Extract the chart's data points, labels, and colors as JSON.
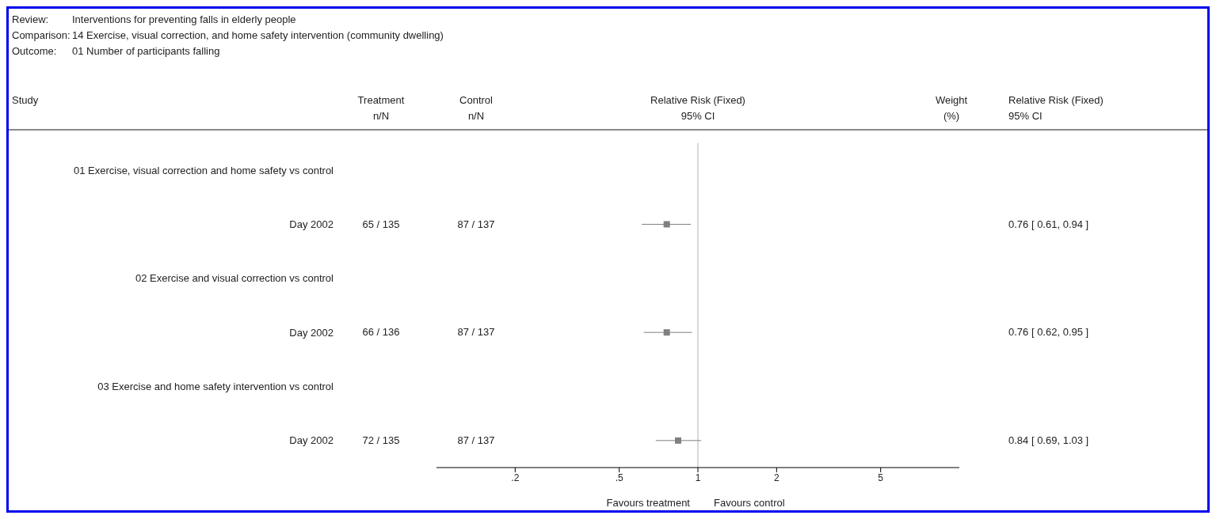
{
  "chart_data": {
    "type": "scatter",
    "orientation": "horizontal",
    "log": "x",
    "marker": "square",
    "grid": false,
    "legend": false,
    "color": "#808080",
    "categories": [
      "01 Exercise, visual correction and home safety vs control",
      "Day 2002",
      "02 Exercise and visual correction vs control",
      "Day 2002",
      "03 Exercise and home safety intervention vs control",
      "Day 2002"
    ],
    "values": [
      null,
      0.76,
      null,
      0.76,
      null,
      0.84
    ],
    "errors": [
      null,
      [
        0.61,
        0.94
      ],
      null,
      [
        0.62,
        0.95
      ],
      null,
      [
        0.69,
        1.03
      ]
    ],
    "value_labels": [
      null,
      "0.76 [ 0.61, 0.94 ]",
      null,
      "0.76 [ 0.62, 0.95 ]",
      null,
      "0.84 [ 0.69, 1.03 ]"
    ],
    "xlim": [
      0.1,
      10
    ],
    "xticks": [
      {
        "value": 0.2,
        "label": ".2"
      },
      {
        "value": 0.5,
        "label": ".5"
      },
      1,
      2,
      5
    ],
    "ref_lines": [
      {
        "axis": "x",
        "value": 1,
        "color": "#b0b0b0"
      }
    ],
    "annotations": [
      "Review:",
      "Interventions for preventing falls in elderly people",
      "Comparison:",
      "14 Exercise, visual correction, and home safety intervention (community dwelling)",
      "Outcome:",
      "01 Number of participants falling",
      "Study",
      "Treatment",
      "n/N",
      "Control",
      "n/N",
      "Relative Risk (Fixed)",
      "95% CI",
      "Weight",
      "(%)",
      "Relative Risk (Fixed)",
      "95% CI",
      "Favours treatment",
      "Favours control",
      "65 / 135",
      "87 / 137",
      "66 / 136",
      "87 / 137",
      "72 / 135",
      "87 / 137"
    ]
  }
}
